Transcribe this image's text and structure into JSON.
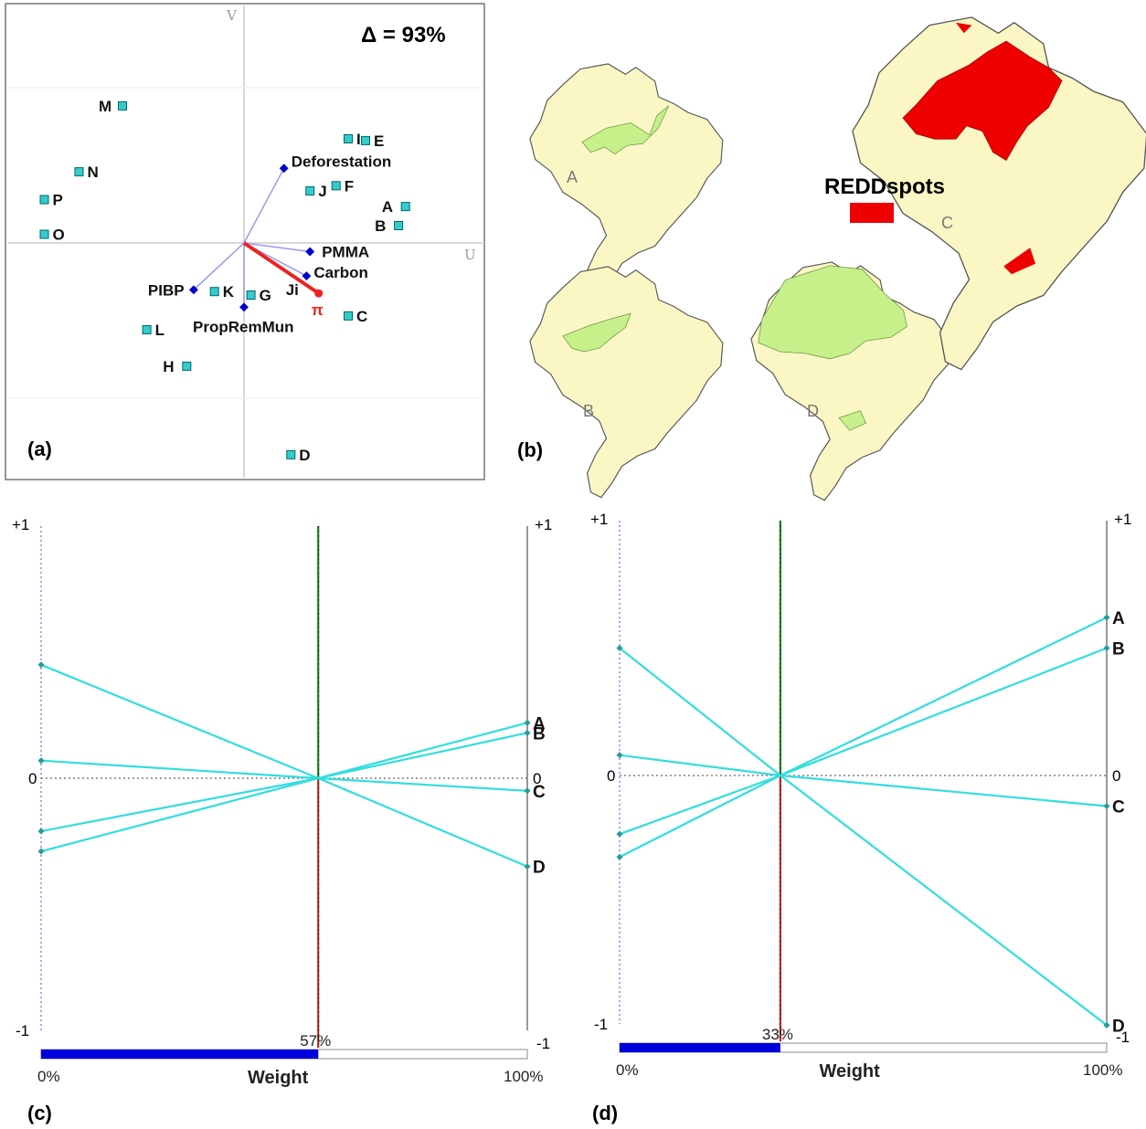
{
  "chart_data": [
    {
      "type": "scatter",
      "panel": "(a)",
      "annotation": "Δ = 93%",
      "axes": {
        "v_label": "V",
        "u_label": "U"
      },
      "points": [
        {
          "label": "M",
          "u": -0.7,
          "v": 0.79
        },
        {
          "label": "N",
          "u": -0.95,
          "v": 0.41
        },
        {
          "label": "P",
          "u": -1.15,
          "v": 0.25
        },
        {
          "label": "O",
          "u": -1.15,
          "v": 0.05
        },
        {
          "label": "I",
          "u": 0.6,
          "v": 0.6
        },
        {
          "label": "E",
          "u": 0.7,
          "v": 0.59
        },
        {
          "label": "J",
          "u": 0.38,
          "v": 0.3
        },
        {
          "label": "F",
          "u": 0.53,
          "v": 0.33
        },
        {
          "label": "A",
          "u": 0.93,
          "v": 0.21
        },
        {
          "label": "B",
          "u": 0.89,
          "v": 0.1
        },
        {
          "label": "K",
          "u": -0.17,
          "v": -0.28
        },
        {
          "label": "G",
          "u": 0.04,
          "v": -0.3
        },
        {
          "label": "C",
          "u": 0.6,
          "v": -0.42
        },
        {
          "label": "L",
          "u": -0.56,
          "v": -0.5
        },
        {
          "label": "H",
          "u": -0.33,
          "v": -0.71
        },
        {
          "label": "D",
          "u": 0.27,
          "v": -1.22
        }
      ],
      "vectors": [
        {
          "label": "Deforestation",
          "u": 0.23,
          "v": 0.43
        },
        {
          "label": "PMMA",
          "u": 0.38,
          "v": -0.05
        },
        {
          "label": "Carbon",
          "u": 0.36,
          "v": -0.19
        },
        {
          "label": "PIBP",
          "u": -0.29,
          "v": -0.27
        },
        {
          "label": "PropRemMun",
          "u": 0.0,
          "v": -0.37
        }
      ],
      "decision_axis": {
        "label": "Ji",
        "pi_label": "π",
        "u": 0.43,
        "v": -0.29
      }
    },
    {
      "type": "map",
      "panel": "(b)",
      "legend_label": "REDDspots",
      "legend_color": "#ee0000",
      "maps": [
        "A",
        "B",
        "C",
        "D"
      ]
    },
    {
      "type": "line",
      "panel": "(c)",
      "xlabel": "Weight",
      "x_ticks": [
        "0%",
        "100%"
      ],
      "weight_value": 57,
      "weight_label": "57%",
      "ylim": [
        -1,
        1
      ],
      "y_ticks": [
        "+1",
        "0",
        "-1"
      ],
      "series": [
        {
          "name": "A",
          "left": -0.21,
          "right": 0.22
        },
        {
          "name": "B",
          "left": -0.29,
          "right": 0.18
        },
        {
          "name": "C",
          "left": 0.07,
          "right": -0.05
        },
        {
          "name": "D",
          "left": 0.45,
          "right": -0.35
        }
      ]
    },
    {
      "type": "line",
      "panel": "(d)",
      "xlabel": "Weight",
      "x_ticks": [
        "0%",
        "100%"
      ],
      "weight_value": 33,
      "weight_label": "33%",
      "ylim": [
        -1,
        1
      ],
      "y_ticks": [
        "+1",
        "0",
        "-1"
      ],
      "series": [
        {
          "name": "A",
          "left": -0.23,
          "right": 0.62
        },
        {
          "name": "B",
          "left": -0.32,
          "right": 0.5
        },
        {
          "name": "C",
          "left": 0.08,
          "right": -0.12
        },
        {
          "name": "D",
          "left": 0.5,
          "right": -0.98
        }
      ]
    }
  ],
  "colors": {
    "point": "#33cccc",
    "point_stroke": "#006666",
    "vector": "#9999ee",
    "vector_end": "#0000cc",
    "pi_axis": "#ee2222",
    "line": "#33dddd",
    "weight_fill": "#0000dd",
    "map_fill": "#fbf7c4",
    "map_green": "#c8f08a",
    "redd": "#ee0000"
  }
}
